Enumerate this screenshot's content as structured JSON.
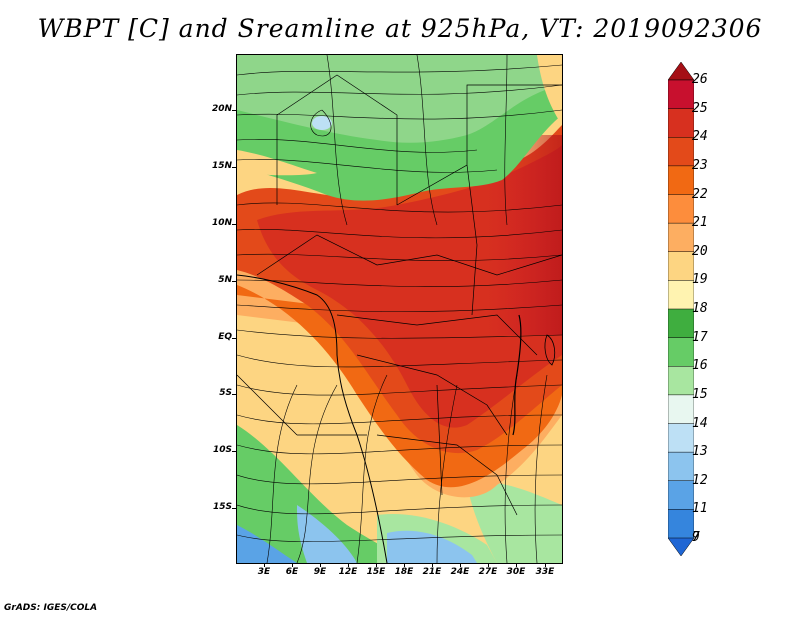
{
  "title": "WBPT [C] and Sreamline at 925hPa, VT: 2019092306",
  "footer": "GrADS: IGES/COLA",
  "map": {
    "lat_range": [
      -21,
      24
    ],
    "lon_range": [
      0,
      35
    ],
    "lat_ticks": [
      "20N",
      "15N",
      "10N",
      "5N",
      "EQ",
      "5S",
      "10S",
      "15S"
    ],
    "lon_ticks": [
      "3E",
      "6E",
      "9E",
      "12E",
      "15E",
      "18E",
      "21E",
      "24E",
      "27E",
      "30E",
      "33E"
    ]
  },
  "colorbar": {
    "labels": [
      "26",
      "25",
      "24",
      "23",
      "22",
      "21",
      "20",
      "19",
      "18",
      "17",
      "16",
      "15",
      "14",
      "13",
      "12",
      "11",
      "9",
      "7"
    ],
    "colors": [
      "#a50f15",
      "#c8102e",
      "#d7301f",
      "#e34a1a",
      "#f16913",
      "#fd8d3c",
      "#fdae61",
      "#fdd582",
      "#fff3b0",
      "#3fae3f",
      "#66cc66",
      "#a8e6a0",
      "#e8f7f0",
      "#bde0f5",
      "#8cc4ee",
      "#5aa3e6",
      "#3585dd",
      "#1f66d4"
    ]
  }
}
